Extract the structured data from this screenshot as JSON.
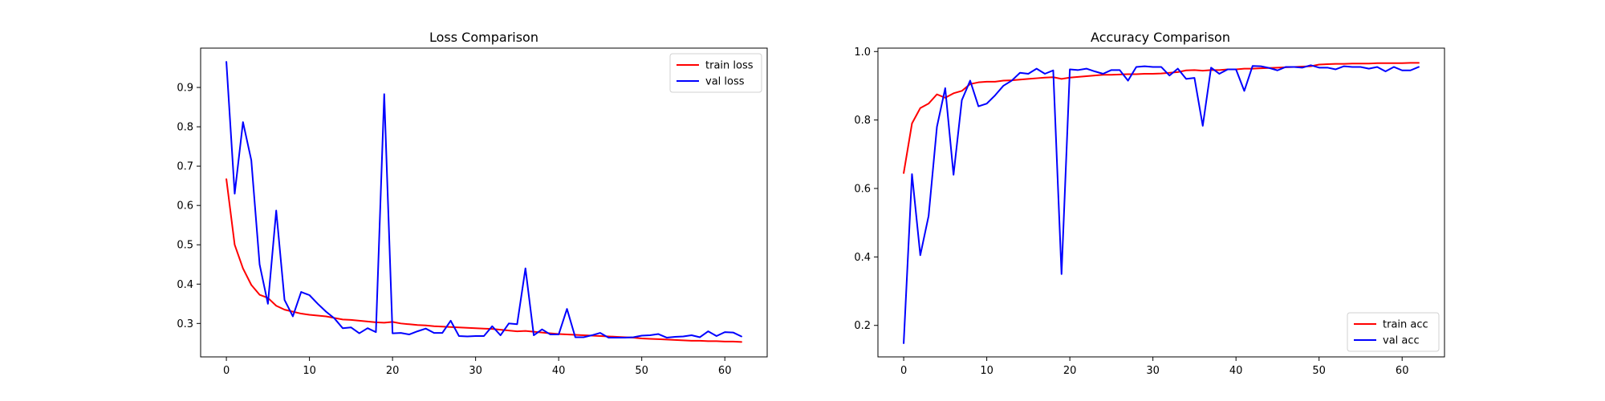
{
  "chart_data": [
    {
      "type": "line",
      "title": "Loss Comparison",
      "xlabel": "",
      "ylabel": "",
      "xlim": [
        -3.1,
        65.1
      ],
      "ylim": [
        0.215,
        1.0
      ],
      "xticks": [
        0,
        10,
        20,
        30,
        40,
        50,
        60
      ],
      "yticks": [
        0.3,
        0.4,
        0.5,
        0.6,
        0.7,
        0.8,
        0.9
      ],
      "grid": false,
      "legend_position": "top-right",
      "x": [
        0,
        1,
        2,
        3,
        4,
        5,
        6,
        7,
        8,
        9,
        10,
        11,
        12,
        13,
        14,
        15,
        16,
        17,
        18,
        19,
        20,
        21,
        22,
        23,
        24,
        25,
        26,
        27,
        28,
        29,
        30,
        31,
        32,
        33,
        34,
        35,
        36,
        37,
        38,
        39,
        40,
        41,
        42,
        43,
        44,
        45,
        46,
        47,
        48,
        49,
        50,
        51,
        52,
        53,
        54,
        55,
        56,
        57,
        58,
        59,
        60,
        61,
        62
      ],
      "series": [
        {
          "name": "train loss",
          "color": "#ff0000",
          "values": [
            0.667,
            0.5,
            0.44,
            0.398,
            0.373,
            0.365,
            0.345,
            0.335,
            0.33,
            0.325,
            0.322,
            0.32,
            0.318,
            0.314,
            0.31,
            0.309,
            0.307,
            0.305,
            0.303,
            0.302,
            0.304,
            0.3,
            0.298,
            0.296,
            0.295,
            0.293,
            0.292,
            0.291,
            0.29,
            0.289,
            0.288,
            0.287,
            0.286,
            0.284,
            0.282,
            0.28,
            0.281,
            0.279,
            0.277,
            0.275,
            0.273,
            0.272,
            0.271,
            0.27,
            0.269,
            0.268,
            0.267,
            0.266,
            0.265,
            0.264,
            0.262,
            0.261,
            0.26,
            0.259,
            0.258,
            0.257,
            0.256,
            0.256,
            0.255,
            0.255,
            0.254,
            0.254,
            0.253
          ]
        },
        {
          "name": "val loss",
          "color": "#0000ff",
          "values": [
            0.965,
            0.63,
            0.812,
            0.715,
            0.45,
            0.35,
            0.587,
            0.36,
            0.318,
            0.38,
            0.372,
            0.35,
            0.33,
            0.313,
            0.288,
            0.29,
            0.275,
            0.288,
            0.278,
            0.883,
            0.275,
            0.276,
            0.272,
            0.28,
            0.287,
            0.276,
            0.276,
            0.307,
            0.268,
            0.267,
            0.268,
            0.268,
            0.293,
            0.27,
            0.3,
            0.298,
            0.44,
            0.27,
            0.285,
            0.272,
            0.272,
            0.337,
            0.265,
            0.265,
            0.27,
            0.276,
            0.264,
            0.264,
            0.264,
            0.265,
            0.269,
            0.27,
            0.273,
            0.264,
            0.266,
            0.267,
            0.27,
            0.265,
            0.28,
            0.268,
            0.278,
            0.277,
            0.267
          ]
        }
      ]
    },
    {
      "type": "line",
      "title": "Accuracy Comparison",
      "xlabel": "",
      "ylabel": "",
      "xlim": [
        -3.1,
        65.1
      ],
      "ylim": [
        0.108,
        1.01
      ],
      "xticks": [
        0,
        10,
        20,
        30,
        40,
        50,
        60
      ],
      "yticks": [
        0.2,
        0.4,
        0.6,
        0.8,
        1.0
      ],
      "grid": false,
      "legend_position": "bottom-right",
      "x": [
        0,
        1,
        2,
        3,
        4,
        5,
        6,
        7,
        8,
        9,
        10,
        11,
        12,
        13,
        14,
        15,
        16,
        17,
        18,
        19,
        20,
        21,
        22,
        23,
        24,
        25,
        26,
        27,
        28,
        29,
        30,
        31,
        32,
        33,
        34,
        35,
        36,
        37,
        38,
        39,
        40,
        41,
        42,
        43,
        44,
        45,
        46,
        47,
        48,
        49,
        50,
        51,
        52,
        53,
        54,
        55,
        56,
        57,
        58,
        59,
        60,
        61,
        62
      ],
      "series": [
        {
          "name": "train acc",
          "color": "#ff0000",
          "values": [
            0.645,
            0.79,
            0.835,
            0.848,
            0.875,
            0.865,
            0.878,
            0.885,
            0.905,
            0.91,
            0.912,
            0.912,
            0.915,
            0.916,
            0.918,
            0.92,
            0.922,
            0.924,
            0.925,
            0.92,
            0.924,
            0.926,
            0.928,
            0.93,
            0.932,
            0.932,
            0.933,
            0.934,
            0.934,
            0.935,
            0.935,
            0.936,
            0.938,
            0.94,
            0.945,
            0.946,
            0.944,
            0.946,
            0.946,
            0.948,
            0.948,
            0.95,
            0.95,
            0.951,
            0.952,
            0.953,
            0.954,
            0.955,
            0.956,
            0.957,
            0.962,
            0.963,
            0.964,
            0.964,
            0.965,
            0.965,
            0.965,
            0.966,
            0.966,
            0.966,
            0.966,
            0.967,
            0.967
          ]
        },
        {
          "name": "val acc",
          "color": "#0000ff",
          "values": [
            0.148,
            0.642,
            0.405,
            0.52,
            0.78,
            0.893,
            0.64,
            0.858,
            0.915,
            0.84,
            0.848,
            0.872,
            0.9,
            0.915,
            0.938,
            0.935,
            0.95,
            0.935,
            0.945,
            0.35,
            0.948,
            0.946,
            0.95,
            0.942,
            0.935,
            0.946,
            0.946,
            0.915,
            0.955,
            0.957,
            0.955,
            0.955,
            0.93,
            0.95,
            0.92,
            0.923,
            0.783,
            0.953,
            0.935,
            0.948,
            0.948,
            0.885,
            0.958,
            0.957,
            0.952,
            0.945,
            0.955,
            0.955,
            0.953,
            0.96,
            0.953,
            0.953,
            0.948,
            0.957,
            0.955,
            0.955,
            0.95,
            0.955,
            0.942,
            0.955,
            0.945,
            0.945,
            0.955
          ]
        }
      ]
    }
  ]
}
